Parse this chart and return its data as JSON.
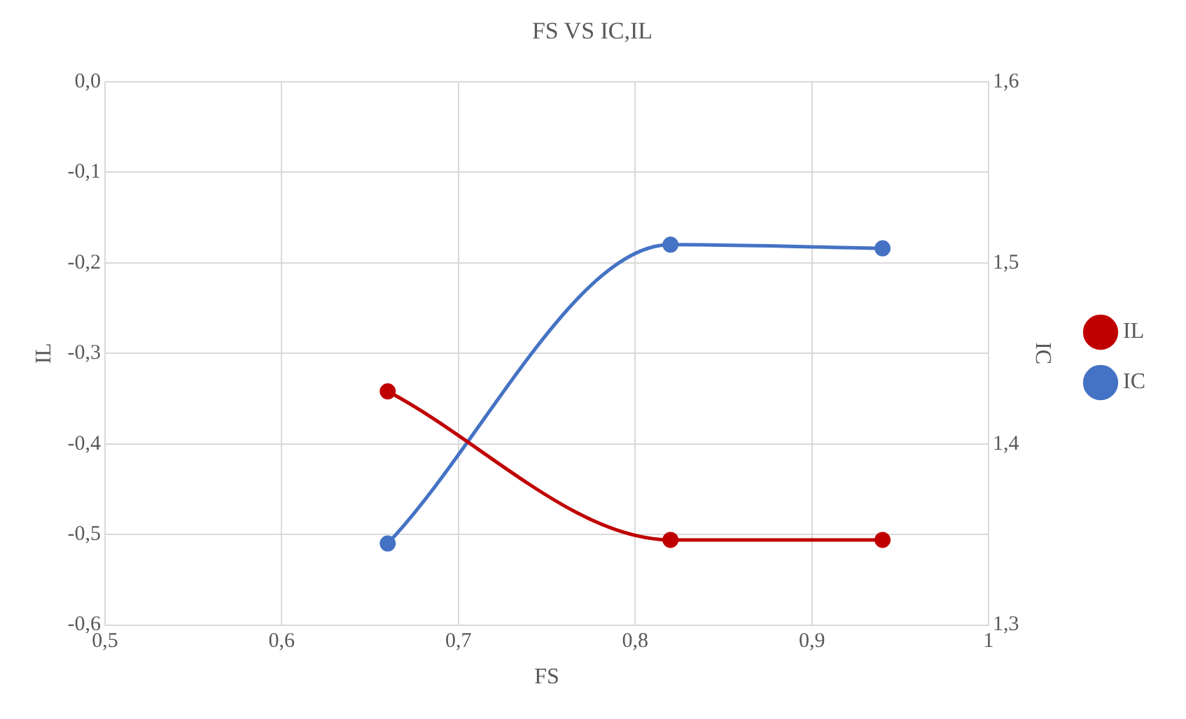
{
  "chart_data": {
    "type": "line",
    "title": "FS VS IC,IL",
    "xlabel": "FS",
    "ylabel": "IL",
    "y2label": "IC",
    "series": [
      {
        "name": "IL",
        "color": "#c00000",
        "x": [
          0.66,
          0.82,
          0.94
        ],
        "values": [
          -0.342,
          -0.506,
          -0.506
        ]
      },
      {
        "name": "IC",
        "color": "#4472c4",
        "x": [
          0.66,
          0.82,
          0.94
        ],
        "values": [
          1.345,
          1.51,
          1.508
        ],
        "axis": "y2"
      }
    ],
    "xlim": [
      0.5,
      1
    ],
    "xticks": [
      {
        "value": 0.5,
        "label": "0,5"
      },
      {
        "value": 0.6,
        "label": "0,6"
      },
      {
        "value": 0.7,
        "label": "0,7"
      },
      {
        "value": 0.8,
        "label": "0,8"
      },
      {
        "value": 0.9,
        "label": "0,9"
      },
      1
    ],
    "ylim": [
      -0.6,
      0
    ],
    "yticks": [
      {
        "value": -0.6,
        "label": "-0,6"
      },
      {
        "value": -0.5,
        "label": "-0,5"
      },
      {
        "value": -0.4,
        "label": "-0,4"
      },
      {
        "value": -0.3,
        "label": "-0,3"
      },
      {
        "value": -0.2,
        "label": "-0,2"
      },
      {
        "value": -0.1,
        "label": "-0,1"
      },
      {
        "value": 0,
        "label": "0,0"
      }
    ],
    "y2lim": [
      1.3,
      1.6
    ],
    "y2ticks": [
      {
        "value": 1.3,
        "label": "1,3"
      },
      {
        "value": 1.4,
        "label": "1,4"
      },
      {
        "value": 1.5,
        "label": "1,5"
      },
      {
        "value": 1.6,
        "label": "1,6"
      }
    ],
    "grid": true,
    "legend": "right",
    "marker": "circle",
    "line_style": "solid"
  }
}
